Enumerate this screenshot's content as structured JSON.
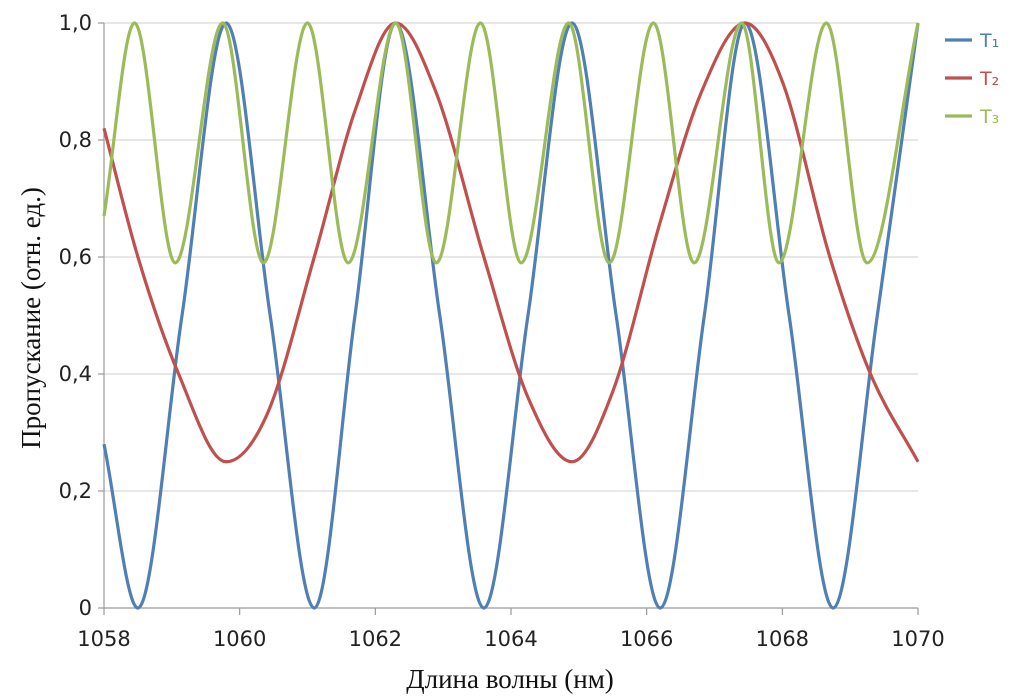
{
  "chart_data": {
    "type": "line",
    "title": "",
    "xlabel": "Длина волны (нм)",
    "ylabel": "Пропускание (отн. ед.)",
    "xlim": [
      1058,
      1070
    ],
    "ylim": [
      0,
      1
    ],
    "x_ticks": [
      1058,
      1060,
      1062,
      1064,
      1066,
      1068,
      1070
    ],
    "x_tick_labels": [
      "1058",
      "1060",
      "1062",
      "1064",
      "1066",
      "1068",
      "1070"
    ],
    "y_ticks": [
      0,
      0.2,
      0.4,
      0.6,
      0.8,
      1.0
    ],
    "y_tick_labels": [
      "0",
      "0,2",
      "0,4",
      "0,6",
      "0,8",
      "1,0"
    ],
    "grid": true,
    "legend_position": "top-right",
    "series": [
      {
        "name": "T₁",
        "color": "#4f7fb4",
        "x": [
          1058.0,
          1058.5,
          1059.15,
          1059.8,
          1060.45,
          1061.1,
          1061.7,
          1062.3,
          1062.95,
          1063.6,
          1064.25,
          1064.9,
          1065.55,
          1066.2,
          1066.85,
          1067.45,
          1068.1,
          1068.75,
          1069.4,
          1070.0
        ],
        "y": [
          0.28,
          0.0,
          0.5,
          1.0,
          0.5,
          0.0,
          0.5,
          1.0,
          0.5,
          0.0,
          0.5,
          1.0,
          0.5,
          0.0,
          0.5,
          1.0,
          0.5,
          0.0,
          0.5,
          1.0
        ]
      },
      {
        "name": "T₂",
        "color": "#c0504d",
        "x": [
          1058.0,
          1058.5,
          1059.1,
          1059.8,
          1060.4,
          1061.1,
          1061.7,
          1062.3,
          1062.9,
          1063.6,
          1064.25,
          1064.9,
          1065.5,
          1066.2,
          1066.8,
          1067.45,
          1068.0,
          1068.7,
          1069.3,
          1070.0
        ],
        "y": [
          0.82,
          0.6,
          0.4,
          0.25,
          0.33,
          0.6,
          0.85,
          1.0,
          0.88,
          0.6,
          0.36,
          0.25,
          0.37,
          0.66,
          0.88,
          1.0,
          0.9,
          0.6,
          0.4,
          0.25
        ]
      },
      {
        "name": "T₃",
        "color": "#9bbb59",
        "x": [
          1058.0,
          1058.45,
          1059.05,
          1059.75,
          1060.35,
          1061.0,
          1061.6,
          1062.3,
          1062.9,
          1063.55,
          1064.15,
          1064.85,
          1065.45,
          1066.1,
          1066.7,
          1067.4,
          1067.95,
          1068.65,
          1069.25,
          1070.0
        ],
        "y": [
          0.67,
          1.0,
          0.59,
          1.0,
          0.59,
          1.0,
          0.59,
          1.0,
          0.59,
          1.0,
          0.59,
          1.0,
          0.59,
          1.0,
          0.59,
          1.0,
          0.59,
          1.0,
          0.59,
          1.0
        ]
      }
    ]
  }
}
